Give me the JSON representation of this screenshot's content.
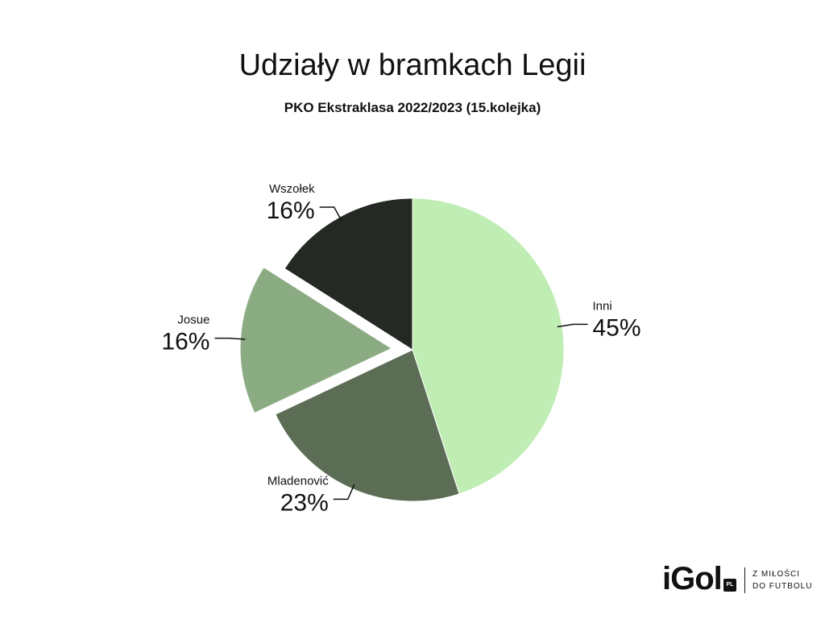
{
  "chart_data": {
    "type": "pie",
    "title": "Udziały w bramkach Legii",
    "subtitle": "PKO Ekstraklasa 2022/2023 (15.kolejka)",
    "slices": [
      {
        "name": "Inni",
        "value": 45,
        "label": "45%",
        "color": "#bfedb3",
        "exploded": false
      },
      {
        "name": "Mladenović",
        "value": 23,
        "label": "23%",
        "color": "#5b6e55",
        "exploded": false
      },
      {
        "name": "Josue",
        "value": 16,
        "label": "16%",
        "color": "#8bac82",
        "exploded": true
      },
      {
        "name": "Wszołek",
        "value": 16,
        "label": "16%",
        "color": "#242923",
        "exploded": false
      }
    ],
    "start": "12 o'clock",
    "direction": "clockwise"
  },
  "brand": {
    "logo_text": "iGol",
    "logo_badge": "PL",
    "tagline_line1": "Z MIŁOŚCI",
    "tagline_line2": "DO FUTBOLU"
  }
}
